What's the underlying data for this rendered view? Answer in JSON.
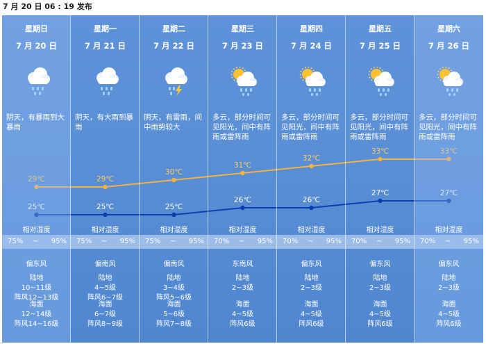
{
  "header": {
    "publish_time": "7 月 20 日 06 : 19 发布"
  },
  "days": [
    {
      "weekday": "星期日",
      "date": "7 月 20 日",
      "icon": "heavy-rain-cloud-icon",
      "desc": "阴天，有暴雨到大暴雨",
      "high": "29℃",
      "low": "25℃",
      "hum_label": "相对湿度",
      "hum_min": "75%",
      "hum_sep": "~",
      "hum_max": "95%",
      "wind_dir": "偏东风",
      "land": "陆地",
      "land_level": "10~11级",
      "land_gust": "阵风12~13级",
      "sea": "海面",
      "sea_level": "12~14级",
      "sea_gust": "阵风14~16级"
    },
    {
      "weekday": "星期一",
      "date": "7 月 21 日",
      "icon": "heavy-rain-cloud-icon",
      "desc": "阴天，有大雨到暴雨",
      "high": "29℃",
      "low": "25℃",
      "hum_label": "相对湿度",
      "hum_min": "75%",
      "hum_sep": "~",
      "hum_max": "95%",
      "wind_dir": "偏南风",
      "land": "陆地",
      "land_level": "4~5级",
      "land_gust": "阵风6~7级",
      "sea": "海面",
      "sea_level": "6~7级",
      "sea_gust": "阵风8~9级"
    },
    {
      "weekday": "星期二",
      "date": "7 月 22 日",
      "icon": "thunderstorm-cloud-icon",
      "desc": "阴天，有雷雨，间中雨势较大",
      "high": "30℃",
      "low": "25℃",
      "hum_label": "相对湿度",
      "hum_min": "75%",
      "hum_sep": "~",
      "hum_max": "95%",
      "wind_dir": "偏南风",
      "land": "陆地",
      "land_level": "3~4级",
      "land_gust": "阵风5~6级",
      "sea": "海面",
      "sea_level": "5~6级",
      "sea_gust": "阵风7~8级"
    },
    {
      "weekday": "星期三",
      "date": "7 月 23 日",
      "icon": "sun-rain-cloud-icon",
      "desc": "多云，部分时间可见阳光，间中有阵雨或雷阵雨",
      "high": "31℃",
      "low": "26℃",
      "hum_label": "相对湿度",
      "hum_min": "70%",
      "hum_sep": "~",
      "hum_max": "95%",
      "wind_dir": "东南风",
      "land": "陆地",
      "land_level": "2~3级",
      "land_gust": "",
      "sea": "海面",
      "sea_level": "4~5级",
      "sea_gust": "阵风6级"
    },
    {
      "weekday": "星期四",
      "date": "7 月 24 日",
      "icon": "sun-rain-cloud-icon",
      "desc": "多云，部分时间可见阳光，间中有阵雨或雷阵雨",
      "high": "32℃",
      "low": "26℃",
      "hum_label": "相对湿度",
      "hum_min": "70%",
      "hum_sep": "~",
      "hum_max": "95%",
      "wind_dir": "偏东风",
      "land": "陆地",
      "land_level": "2~3级",
      "land_gust": "",
      "sea": "海面",
      "sea_level": "4~5级",
      "sea_gust": "阵风6级"
    },
    {
      "weekday": "星期五",
      "date": "7 月 25 日",
      "icon": "sun-rain-cloud-icon",
      "desc": "多云，部分时间可见阳光，间中有阵雨或雷阵雨",
      "high": "33℃",
      "low": "27℃",
      "hum_label": "相对湿度",
      "hum_min": "70%",
      "hum_sep": "~",
      "hum_max": "95%",
      "wind_dir": "偏东风",
      "land": "陆地",
      "land_level": "2~3级",
      "land_gust": "",
      "sea": "海面",
      "sea_level": "4~5级",
      "sea_gust": "阵风6级"
    },
    {
      "weekday": "星期六",
      "date": "7 月 26 日",
      "icon": "sun-rain-cloud-icon",
      "desc": "多云，部分时间可见阳光，间中有阵雨或雷阵雨",
      "high": "33℃",
      "low": "27℃",
      "hum_label": "相对湿度",
      "hum_min": "70%",
      "hum_sep": "~",
      "hum_max": "95%",
      "wind_dir": "偏东风",
      "land": "陆地",
      "land_level": "2~3级",
      "land_gust": "",
      "sea": "海面",
      "sea_level": "4~5级",
      "sea_gust": "阵风6级"
    }
  ],
  "chart_data": {
    "type": "line",
    "x": [
      "7 月 20 日",
      "7 月 21 日",
      "7 月 22 日",
      "7 月 23 日",
      "7 月 24 日",
      "7 月 25 日",
      "7 月 26 日"
    ],
    "series": [
      {
        "values": [
          29,
          29,
          30,
          31,
          32,
          33,
          33
        ]
      },
      {
        "values": [
          25,
          25,
          25,
          26,
          26,
          27,
          27
        ]
      }
    ]
  },
  "colors": {
    "high_line": "#f5b342",
    "low_line": "#0b3fae",
    "panel": "#5a8fd6",
    "humidity_band": "#9bbce6"
  }
}
